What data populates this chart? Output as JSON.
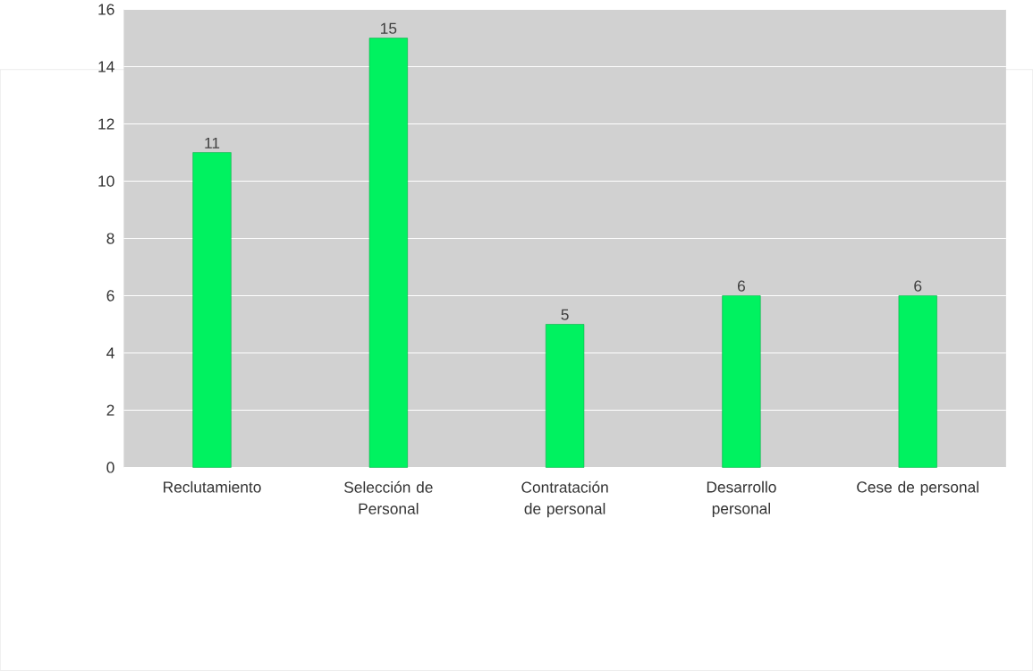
{
  "chart_data": {
    "type": "bar",
    "categories": [
      "Reclutamiento",
      "Selección de Personal",
      "Contratación de personal",
      "Desarrollo personal",
      "Cese de personal"
    ],
    "values": [
      11,
      15,
      5,
      6,
      6
    ],
    "color": "#00f260",
    "ylim": [
      0,
      16
    ],
    "yticks": [
      0,
      2,
      4,
      6,
      8,
      10,
      12,
      14,
      16
    ],
    "grid": "y",
    "data_labels": true
  }
}
